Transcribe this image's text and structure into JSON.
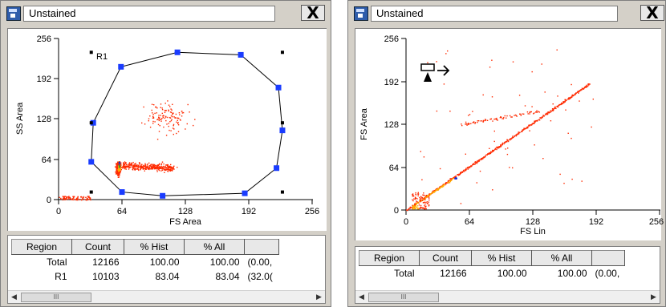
{
  "windows": [
    {
      "id": "left",
      "title": "Unstained",
      "close_label": "X",
      "x_axis_label": "FS Area",
      "y_axis_label": "SS Area",
      "x_ticks": [
        "0",
        "64",
        "128",
        "192",
        "256"
      ],
      "y_ticks": [
        "0",
        "64",
        "128",
        "192",
        "256"
      ],
      "region_label": "R1",
      "gate_polygon_data": [
        [
          63,
          211
        ],
        [
          120,
          234
        ],
        [
          184,
          230
        ],
        [
          222,
          178
        ],
        [
          226,
          110
        ],
        [
          220,
          50
        ],
        [
          188,
          10
        ],
        [
          105,
          6
        ],
        [
          64,
          12
        ],
        [
          33,
          60
        ],
        [
          35,
          122
        ]
      ],
      "table": {
        "headers": [
          "Region",
          "Count",
          "% Hist",
          "% All",
          ""
        ],
        "rows": [
          [
            "Total",
            "12166",
            "100.00",
            "100.00",
            "(0.00,"
          ],
          [
            "R1",
            "10103",
            "83.04",
            "83.04",
            "(32.0("
          ]
        ]
      }
    },
    {
      "id": "right",
      "title": "Unstained",
      "close_label": "X",
      "x_axis_label": "FS Lin",
      "y_axis_label": "FS Area",
      "x_ticks": [
        "0",
        "64",
        "128",
        "192",
        "256"
      ],
      "y_ticks": [
        "0",
        "64",
        "128",
        "192",
        "256"
      ],
      "table": {
        "headers": [
          "Region",
          "Count",
          "% Hist",
          "% All",
          ""
        ],
        "rows": [
          [
            "Total",
            "12166",
            "100.00",
            "100.00",
            "(0.00,"
          ]
        ]
      }
    }
  ],
  "scroll_thumb_glyph": "III",
  "colors": {
    "window_bg": "#d4d0c8",
    "gate_handle": "#1a3cff",
    "dot_low": "#ff2a00",
    "dot_mid": "#ffb000",
    "dot_high": "#1c2bd0"
  }
}
